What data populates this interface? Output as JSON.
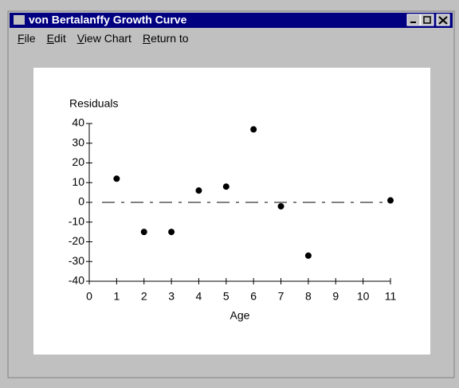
{
  "window": {
    "title": "von Bertalanffy Growth Curve",
    "menu": [
      "File",
      "Edit",
      "View Chart",
      "Return to"
    ]
  },
  "chart_data": {
    "type": "scatter",
    "ylabel": "Residuals",
    "xlabel": "Age",
    "x": [
      1,
      2,
      3,
      4,
      5,
      6,
      7,
      8,
      11
    ],
    "values": [
      12,
      -15,
      -15,
      6,
      8,
      37,
      -2,
      -27,
      1
    ],
    "color": "#000000",
    "xlim": [
      0,
      11
    ],
    "xticks": [
      0,
      1,
      2,
      3,
      4,
      5,
      6,
      7,
      8,
      9,
      10,
      11
    ],
    "ylim": [
      -40,
      40
    ],
    "yticks": [
      -40,
      -30,
      -20,
      -10,
      0,
      10,
      20,
      30,
      40
    ],
    "reference_line": 0
  }
}
